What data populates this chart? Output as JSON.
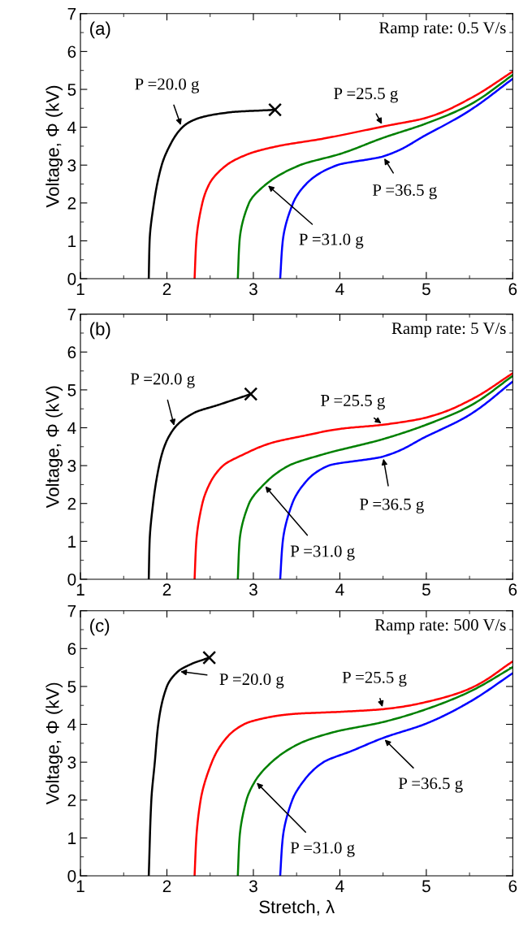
{
  "chart_data": [
    {
      "type": "line",
      "ylabel": "Voltage, Φ (kV)",
      "xlim": [
        1,
        6
      ],
      "ylim": [
        0,
        7
      ],
      "xticks": [
        1,
        2,
        3,
        4,
        5,
        6
      ],
      "yticks": [
        0,
        1,
        2,
        3,
        4,
        5,
        6,
        7
      ],
      "grid": false,
      "legend": false,
      "marker": "none",
      "line_style": "solid",
      "series": [
        {
          "color": "#000000",
          "x": [
            1.79,
            1.8,
            1.85,
            1.94,
            2.03,
            2.18,
            2.32,
            2.75,
            3.25
          ],
          "values": [
            0,
            1,
            2,
            3,
            3.5,
            4,
            4.2,
            4.4,
            4.46
          ]
        },
        {
          "color": "#ff0000",
          "x": [
            2.32,
            2.34,
            2.41,
            2.49,
            2.69,
            2.95,
            3.28,
            3.81,
            4.5,
            5,
            5.5,
            6
          ],
          "values": [
            0,
            1,
            2,
            2.5,
            3,
            3.3,
            3.5,
            3.7,
            4.02,
            4.25,
            4.75,
            5.47
          ]
        },
        {
          "color": "#008000",
          "x": [
            2.82,
            2.84,
            2.95,
            3.15,
            3.54,
            4.01,
            4.5,
            5,
            5.5,
            6
          ],
          "values": [
            0,
            1,
            2,
            2.5,
            3,
            3.3,
            3.72,
            4.1,
            4.59,
            5.38
          ]
        },
        {
          "color": "#0000ff",
          "x": [
            3.31,
            3.34,
            3.46,
            3.61,
            3.97,
            4.5,
            5,
            5.5,
            6
          ],
          "values": [
            0,
            1,
            2,
            2.5,
            3,
            3.23,
            3.8,
            4.44,
            5.28
          ]
        },
        {
          "type": "scatter",
          "marker": "cross",
          "color": "#000000",
          "x": [
            3.25
          ],
          "values": [
            4.46
          ]
        }
      ],
      "annotations": [
        "(a)",
        "Ramp rate: 0.5 V/s",
        {
          "text": "P =20.0 g",
          "x": 2.17,
          "y": 4.0
        },
        {
          "text": "P =25.5 g",
          "x": 4.5,
          "y": 4.03
        },
        {
          "text": "P =36.5 g",
          "x": 4.5,
          "y": 3.23
        },
        {
          "text": "P =31.0 g",
          "x": 3.15,
          "y": 2.5
        }
      ]
    },
    {
      "type": "line",
      "ylabel": "Voltage, Φ (kV)",
      "xlim": [
        1,
        6
      ],
      "ylim": [
        0,
        7
      ],
      "xticks": [
        1,
        2,
        3,
        4,
        5,
        6
      ],
      "yticks": [
        0,
        1,
        2,
        3,
        4,
        5,
        6,
        7
      ],
      "grid": false,
      "legend": false,
      "marker": "none",
      "line_style": "solid",
      "series": [
        {
          "color": "#000000",
          "x": [
            1.79,
            1.8,
            1.84,
            1.91,
            1.97,
            2.09,
            2.32,
            2.59,
            2.97
          ],
          "values": [
            0,
            1,
            2,
            3,
            3.5,
            4,
            4.4,
            4.6,
            4.89
          ]
        },
        {
          "color": "#ff0000",
          "x": [
            2.32,
            2.34,
            2.41,
            2.49,
            2.65,
            2.89,
            3.21,
            3.61,
            4,
            4.5,
            5,
            5.5,
            6
          ],
          "values": [
            0,
            1,
            2,
            2.5,
            3,
            3.3,
            3.6,
            3.8,
            3.97,
            4.08,
            4.27,
            4.72,
            5.44
          ]
        },
        {
          "color": "#008000",
          "x": [
            2.82,
            2.84,
            2.95,
            3.12,
            3.41,
            3.81,
            4.5,
            5,
            5.5,
            6
          ],
          "values": [
            0,
            1,
            2,
            2.5,
            3,
            3.3,
            3.7,
            4.08,
            4.57,
            5.37
          ]
        },
        {
          "color": "#0000ff",
          "x": [
            3.31,
            3.34,
            3.45,
            3.58,
            3.87,
            4.5,
            5,
            5.5,
            6
          ],
          "values": [
            0,
            1,
            2,
            2.5,
            3,
            3.24,
            3.77,
            4.34,
            5.22
          ]
        },
        {
          "type": "scatter",
          "marker": "cross",
          "color": "#000000",
          "x": [
            2.97
          ],
          "values": [
            4.89
          ]
        }
      ],
      "annotations": [
        "(b)",
        "Ramp rate: 5 V/s",
        {
          "text": "P =20.0 g",
          "x": 2.09,
          "y": 4
        },
        {
          "text": "P =25.5 g",
          "x": 4.5,
          "y": 4.08
        },
        {
          "text": "P =36.5 g",
          "x": 4.5,
          "y": 3.24
        },
        {
          "text": "P =31.0 g",
          "x": 3.12,
          "y": 2.5
        }
      ]
    },
    {
      "type": "line",
      "xlabel": "Stretch, λ",
      "ylabel": "Voltage, Φ (kV)",
      "xlim": [
        1,
        6
      ],
      "ylim": [
        0,
        7
      ],
      "xticks": [
        1,
        2,
        3,
        4,
        5,
        6
      ],
      "yticks": [
        0,
        1,
        2,
        3,
        4,
        5,
        6,
        7
      ],
      "grid": false,
      "legend": false,
      "marker": "none",
      "line_style": "solid",
      "series": [
        {
          "color": "#000000",
          "x": [
            1.79,
            1.82,
            1.86,
            1.9,
            2.0,
            2.13,
            2.29,
            2.49
          ],
          "values": [
            0,
            2,
            3,
            4,
            5,
            5.4,
            5.6,
            5.76
          ]
        },
        {
          "color": "#ff0000",
          "x": [
            2.32,
            2.34,
            2.39,
            2.52,
            2.64,
            2.89,
            3.21,
            3.5,
            4,
            4.5,
            5,
            5.5,
            6
          ],
          "values": [
            0,
            1,
            2,
            3,
            3.5,
            4,
            4.2,
            4.28,
            4.33,
            4.4,
            4.59,
            4.94,
            5.66
          ]
        },
        {
          "color": "#008000",
          "x": [
            2.82,
            2.84,
            2.92,
            3.02,
            3.21,
            3.54,
            3.94,
            4.5,
            5,
            5.5,
            6
          ],
          "values": [
            0,
            1,
            2,
            2.5,
            3,
            3.5,
            3.8,
            4.06,
            4.4,
            4.86,
            5.51
          ]
        },
        {
          "color": "#0000ff",
          "x": [
            3.31,
            3.34,
            3.45,
            3.58,
            3.81,
            4.14,
            4.5,
            5,
            5.5,
            6
          ],
          "values": [
            0,
            1,
            2,
            2.5,
            3,
            3.3,
            3.64,
            4.02,
            4.59,
            5.35
          ]
        },
        {
          "type": "scatter",
          "marker": "cross",
          "color": "#000000",
          "x": [
            2.49
          ],
          "values": [
            5.76
          ]
        }
      ],
      "annotations": [
        "(c)",
        "Ramp rate: 500 V/s",
        {
          "text": "P =20.0 g",
          "x": 2.13,
          "y": 5.4
        },
        {
          "text": "P =25.5 g",
          "x": 4.5,
          "y": 4.4
        },
        {
          "text": "P =36.5 g",
          "x": 4.5,
          "y": 3.64
        },
        {
          "text": "P =31.0 g",
          "x": 3.02,
          "y": 2.5
        }
      ]
    }
  ]
}
